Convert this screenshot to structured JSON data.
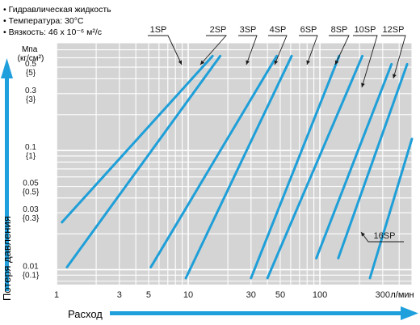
{
  "conditions": [
    "• Гидравлическая жидкость",
    "• Температура: 30°C",
    "• Вязкость: 46 x 10⁻⁶ м²/с"
  ],
  "chart_data": {
    "type": "line",
    "xscale": "log",
    "yscale": "log",
    "xlabel": "Расход",
    "ylabel": "Потеря давления",
    "x_unit": "л/мин",
    "y_unit": "Мпа (кг/см²)",
    "xlim": [
      1,
      500
    ],
    "ylim": [
      0.0075,
      0.8
    ],
    "x_ticks": [
      {
        "value": 1,
        "label": "1"
      },
      {
        "value": 3,
        "label": "3"
      },
      {
        "value": 5,
        "label": "5"
      },
      {
        "value": 10,
        "label": "10"
      },
      {
        "value": 30,
        "label": "30"
      },
      {
        "value": 50,
        "label": "50"
      },
      {
        "value": 100,
        "label": "100"
      },
      {
        "value": 300,
        "label": "300"
      }
    ],
    "y_ticks": [
      {
        "value": 0.5,
        "label": "0.5",
        "label2": "{5}"
      },
      {
        "value": 0.3,
        "label": "0.3",
        "label2": "{3}"
      },
      {
        "value": 0.1,
        "label": "0.1",
        "label2": "{1}"
      },
      {
        "value": 0.05,
        "label": "0.05",
        "label2": "{0.5}"
      },
      {
        "value": 0.03,
        "label": "0.03",
        "label2": "{0.3}"
      },
      {
        "value": 0.01,
        "label": "0.01",
        "label2": "{0.1}"
      }
    ],
    "grid": true,
    "series": [
      {
        "name": "1SP",
        "x": [
          1.1,
          15.3
        ],
        "y": [
          0.025,
          0.62
        ]
      },
      {
        "name": "2SP",
        "x": [
          1.2,
          17.5
        ],
        "y": [
          0.0105,
          0.62
        ]
      },
      {
        "name": "3SP",
        "x": [
          5.2,
          47
        ],
        "y": [
          0.0105,
          0.62
        ]
      },
      {
        "name": "4SP",
        "x": [
          9.6,
          61
        ],
        "y": [
          0.0085,
          0.62
        ]
      },
      {
        "name": "6SP",
        "x": [
          30,
          140
        ],
        "y": [
          0.0085,
          0.62
        ]
      },
      {
        "name": "8SP",
        "x": [
          40,
          210
        ],
        "y": [
          0.0085,
          0.62
        ]
      },
      {
        "name": "10SP",
        "x": [
          94,
          350
        ],
        "y": [
          0.0125,
          0.53
        ]
      },
      {
        "name": "12SP",
        "x": [
          138,
          460
        ],
        "y": [
          0.0125,
          0.53
        ]
      },
      {
        "name": "16SP",
        "x": [
          240,
          500
        ],
        "y": [
          0.0085,
          0.125
        ]
      }
    ]
  },
  "colors": {
    "line": "#1f9fd8",
    "arrow": "#1fa0dc",
    "grid_bg": "#d4d4d4",
    "grid_line": "#ffffff",
    "text": "#1a1a1a"
  }
}
